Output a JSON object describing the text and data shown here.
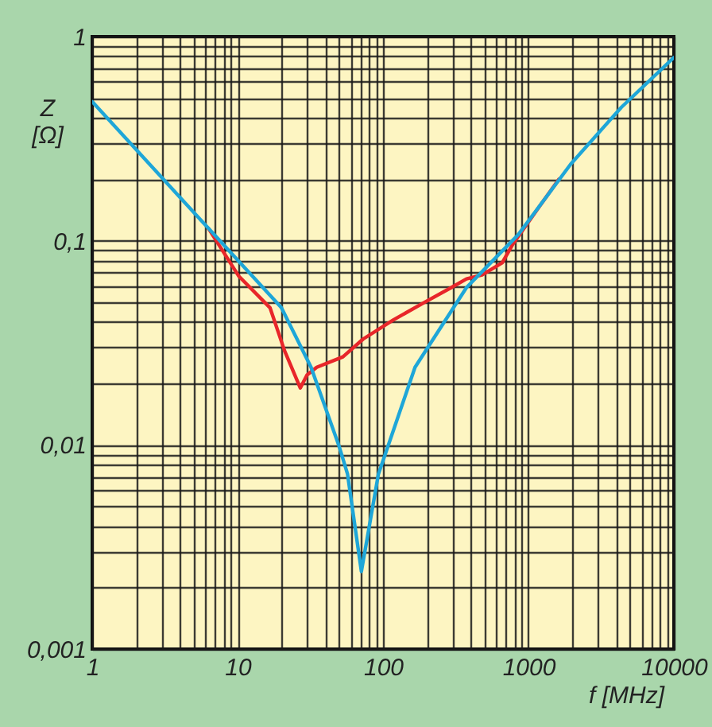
{
  "chart_data": {
    "type": "line",
    "xlabel": "f [MHz]",
    "ylabel": "Z [Ω]",
    "log": "xy",
    "grid": true,
    "marker": "none",
    "line_style": "solid",
    "legend": false,
    "xlim": [
      1,
      10000
    ],
    "ylim": [
      0.001,
      1
    ],
    "xticks": [
      1,
      {
        "value": 2,
        "label": null
      },
      {
        "value": 3,
        "label": null
      },
      {
        "value": 4,
        "label": null
      },
      {
        "value": 5,
        "label": null
      },
      {
        "value": 6,
        "label": null
      },
      {
        "value": 7,
        "label": null
      },
      {
        "value": 8,
        "label": null
      },
      {
        "value": 9,
        "label": null
      },
      10,
      {
        "value": 20,
        "label": null
      },
      {
        "value": 30,
        "label": null
      },
      {
        "value": 40,
        "label": null
      },
      {
        "value": 50,
        "label": null
      },
      {
        "value": 60,
        "label": null
      },
      {
        "value": 70,
        "label": null
      },
      {
        "value": 80,
        "label": null
      },
      {
        "value": 90,
        "label": null
      },
      100,
      {
        "value": 200,
        "label": null
      },
      {
        "value": 300,
        "label": null
      },
      {
        "value": 400,
        "label": null
      },
      {
        "value": 500,
        "label": null
      },
      {
        "value": 600,
        "label": null
      },
      {
        "value": 700,
        "label": null
      },
      {
        "value": 800,
        "label": null
      },
      {
        "value": 900,
        "label": null
      },
      1000,
      {
        "value": 2000,
        "label": null
      },
      {
        "value": 3000,
        "label": null
      },
      {
        "value": 4000,
        "label": null
      },
      {
        "value": 5000,
        "label": null
      },
      {
        "value": 6000,
        "label": null
      },
      {
        "value": 7000,
        "label": null
      },
      {
        "value": 8000,
        "label": null
      },
      {
        "value": 9000,
        "label": null
      },
      10000
    ],
    "yticks": [
      {
        "value": 0.001,
        "label": "0,001"
      },
      {
        "value": 0.002,
        "label": null
      },
      {
        "value": 0.003,
        "label": null
      },
      {
        "value": 0.004,
        "label": null
      },
      {
        "value": 0.005,
        "label": null
      },
      {
        "value": 0.006,
        "label": null
      },
      {
        "value": 0.007,
        "label": null
      },
      {
        "value": 0.008,
        "label": null
      },
      {
        "value": 0.009,
        "label": null
      },
      {
        "value": 0.01,
        "label": "0,01"
      },
      {
        "value": 0.02,
        "label": null
      },
      {
        "value": 0.03,
        "label": null
      },
      {
        "value": 0.04,
        "label": null
      },
      {
        "value": 0.05,
        "label": null
      },
      {
        "value": 0.06,
        "label": null
      },
      {
        "value": 0.07,
        "label": null
      },
      {
        "value": 0.08,
        "label": null
      },
      {
        "value": 0.09,
        "label": null
      },
      {
        "value": 0.1,
        "label": "0,1"
      },
      {
        "value": 0.2,
        "label": null
      },
      {
        "value": 0.3,
        "label": null
      },
      {
        "value": 0.4,
        "label": null
      },
      {
        "value": 0.5,
        "label": null
      },
      {
        "value": 0.6,
        "label": null
      },
      {
        "value": 0.7,
        "label": null
      },
      {
        "value": 0.8,
        "label": null
      },
      {
        "value": 0.9,
        "label": null
      },
      1
    ],
    "series": [
      {
        "color": "#e8262a",
        "x": [
          6.3,
          10.2,
          16.7,
          21,
          27,
          30,
          35,
          53,
          73,
          118,
          194,
          295,
          375,
          480,
          660,
          780,
          1180,
          1620
        ],
        "values": [
          0.115,
          0.067,
          0.047,
          0.029,
          0.019,
          0.022,
          0.024,
          0.027,
          0.033,
          0.041,
          0.05,
          0.059,
          0.065,
          0.068,
          0.078,
          0.096,
          0.146,
          0.2
        ]
      },
      {
        "color": "#1ea6d8",
        "x": [
          1,
          6.3,
          20,
          32,
          50,
          57,
          71,
          93,
          166,
          375,
          850,
          1950,
          4350,
          10000
        ],
        "values": [
          0.48,
          0.115,
          0.047,
          0.024,
          0.0098,
          0.0072,
          0.0024,
          0.0072,
          0.024,
          0.059,
          0.107,
          0.237,
          0.45,
          0.79
        ]
      }
    ]
  }
}
